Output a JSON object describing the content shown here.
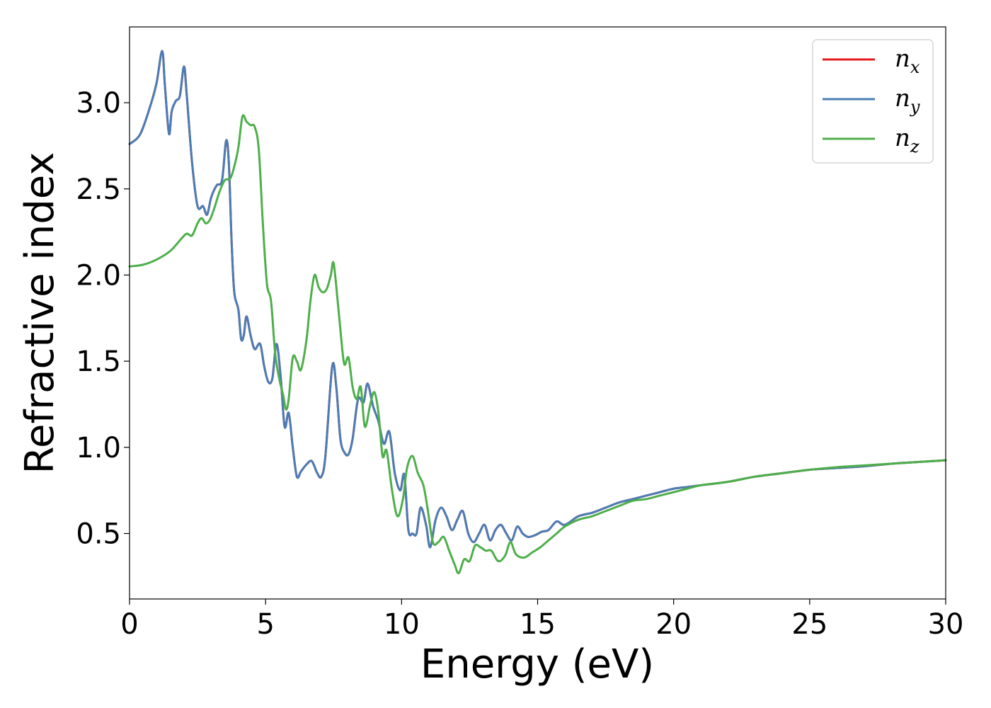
{
  "chart_data": {
    "type": "line",
    "xlabel": "Energy (eV)",
    "ylabel": "Refractive index",
    "xlim": [
      0,
      30
    ],
    "ylim": [
      0.12,
      3.44
    ],
    "xticks": [
      0,
      5,
      10,
      15,
      20,
      25,
      30
    ],
    "xtick_labels": [
      "0",
      "5",
      "10",
      "15",
      "20",
      "25",
      "30"
    ],
    "yticks": [
      0.5,
      1.0,
      1.5,
      2.0,
      2.5,
      3.0
    ],
    "ytick_labels": [
      "0.5",
      "1.0",
      "1.5",
      "2.0",
      "2.5",
      "3.0"
    ],
    "grid": false,
    "legend_position": "top-right",
    "series": [
      {
        "name": "n_x",
        "label_base": "n",
        "label_sub": "x",
        "color": "#e41a1c",
        "x": [
          0,
          0.4,
          0.8,
          1.0,
          1.2,
          1.3,
          1.45,
          1.55,
          1.7,
          1.85,
          2.0,
          2.1,
          2.3,
          2.5,
          2.7,
          2.85,
          3.0,
          3.2,
          3.4,
          3.55,
          3.65,
          3.75,
          3.85,
          4.0,
          4.1,
          4.2,
          4.3,
          4.45,
          4.6,
          4.8,
          4.95,
          5.1,
          5.25,
          5.4,
          5.55,
          5.7,
          5.85,
          6.0,
          6.15,
          6.3,
          6.5,
          6.7,
          6.9,
          7.05,
          7.2,
          7.45,
          7.6,
          7.75,
          7.9,
          8.05,
          8.2,
          8.4,
          8.6,
          8.75,
          8.95,
          9.15,
          9.35,
          9.55,
          9.75,
          9.95,
          10.1,
          10.25,
          10.4,
          10.55,
          10.7,
          10.9,
          11.05,
          11.25,
          11.45,
          11.65,
          11.85,
          12.05,
          12.25,
          12.45,
          12.65,
          12.85,
          13.05,
          13.25,
          13.45,
          13.65,
          13.85,
          14.05,
          14.25,
          14.45,
          14.65,
          14.9,
          15.15,
          15.4,
          15.7,
          16.0,
          16.5,
          17.0,
          17.5,
          18.0,
          18.5,
          19.0,
          19.5,
          20.0,
          20.5,
          21.0,
          22.0,
          23.0,
          24.0,
          25.0,
          26.0,
          27.0,
          28.0,
          29.0,
          30.0
        ],
        "y": [
          2.76,
          2.82,
          3.0,
          3.12,
          3.3,
          3.1,
          2.82,
          2.95,
          3.01,
          3.04,
          3.21,
          3.05,
          2.65,
          2.4,
          2.4,
          2.35,
          2.45,
          2.52,
          2.55,
          2.78,
          2.65,
          2.2,
          1.9,
          1.8,
          1.63,
          1.65,
          1.76,
          1.65,
          1.57,
          1.6,
          1.47,
          1.38,
          1.4,
          1.6,
          1.42,
          1.12,
          1.2,
          1.0,
          0.83,
          0.86,
          0.9,
          0.92,
          0.85,
          0.83,
          0.95,
          1.47,
          1.35,
          1.05,
          0.97,
          0.96,
          1.05,
          1.28,
          1.26,
          1.37,
          1.24,
          1.15,
          1.02,
          1.09,
          0.85,
          0.75,
          0.84,
          0.52,
          0.5,
          0.5,
          0.65,
          0.55,
          0.42,
          0.58,
          0.65,
          0.6,
          0.52,
          0.58,
          0.63,
          0.5,
          0.45,
          0.5,
          0.55,
          0.46,
          0.52,
          0.55,
          0.5,
          0.46,
          0.54,
          0.5,
          0.48,
          0.49,
          0.51,
          0.52,
          0.57,
          0.55,
          0.6,
          0.62,
          0.65,
          0.68,
          0.7,
          0.72,
          0.74,
          0.76,
          0.77,
          0.78,
          0.8,
          0.83,
          0.85,
          0.87,
          0.88,
          0.89,
          0.905,
          0.915,
          0.925
        ]
      },
      {
        "name": "n_y",
        "label_base": "n",
        "label_sub": "y",
        "color": "#4a7db5",
        "x": [
          0,
          0.4,
          0.8,
          1.0,
          1.2,
          1.3,
          1.45,
          1.55,
          1.7,
          1.85,
          2.0,
          2.1,
          2.3,
          2.5,
          2.7,
          2.85,
          3.0,
          3.2,
          3.4,
          3.55,
          3.65,
          3.75,
          3.85,
          4.0,
          4.1,
          4.2,
          4.3,
          4.45,
          4.6,
          4.8,
          4.95,
          5.1,
          5.25,
          5.4,
          5.55,
          5.7,
          5.85,
          6.0,
          6.15,
          6.3,
          6.5,
          6.7,
          6.9,
          7.05,
          7.2,
          7.45,
          7.6,
          7.75,
          7.9,
          8.05,
          8.2,
          8.4,
          8.6,
          8.75,
          8.95,
          9.15,
          9.35,
          9.55,
          9.75,
          9.95,
          10.1,
          10.25,
          10.4,
          10.55,
          10.7,
          10.9,
          11.05,
          11.25,
          11.45,
          11.65,
          11.85,
          12.05,
          12.25,
          12.45,
          12.65,
          12.85,
          13.05,
          13.25,
          13.45,
          13.65,
          13.85,
          14.05,
          14.25,
          14.45,
          14.65,
          14.9,
          15.15,
          15.4,
          15.7,
          16.0,
          16.5,
          17.0,
          17.5,
          18.0,
          18.5,
          19.0,
          19.5,
          20.0,
          20.5,
          21.0,
          22.0,
          23.0,
          24.0,
          25.0,
          26.0,
          27.0,
          28.0,
          29.0,
          30.0
        ],
        "y": [
          2.76,
          2.82,
          3.0,
          3.12,
          3.3,
          3.1,
          2.82,
          2.95,
          3.01,
          3.04,
          3.21,
          3.05,
          2.65,
          2.4,
          2.4,
          2.35,
          2.45,
          2.52,
          2.55,
          2.78,
          2.65,
          2.2,
          1.9,
          1.8,
          1.63,
          1.65,
          1.76,
          1.65,
          1.57,
          1.6,
          1.47,
          1.38,
          1.4,
          1.6,
          1.42,
          1.12,
          1.2,
          1.0,
          0.83,
          0.86,
          0.9,
          0.92,
          0.85,
          0.83,
          0.95,
          1.47,
          1.35,
          1.05,
          0.97,
          0.96,
          1.05,
          1.28,
          1.26,
          1.37,
          1.24,
          1.15,
          1.02,
          1.09,
          0.85,
          0.75,
          0.84,
          0.52,
          0.5,
          0.5,
          0.65,
          0.55,
          0.42,
          0.58,
          0.65,
          0.6,
          0.52,
          0.58,
          0.63,
          0.5,
          0.45,
          0.5,
          0.55,
          0.46,
          0.52,
          0.55,
          0.5,
          0.46,
          0.54,
          0.5,
          0.48,
          0.49,
          0.51,
          0.52,
          0.57,
          0.55,
          0.6,
          0.62,
          0.65,
          0.68,
          0.7,
          0.72,
          0.74,
          0.76,
          0.77,
          0.78,
          0.8,
          0.83,
          0.85,
          0.87,
          0.88,
          0.89,
          0.905,
          0.915,
          0.925
        ]
      },
      {
        "name": "n_z",
        "label_base": "n",
        "label_sub": "z",
        "color": "#4daf4a",
        "x": [
          0,
          0.5,
          1.0,
          1.5,
          1.9,
          2.1,
          2.3,
          2.5,
          2.65,
          2.8,
          2.95,
          3.1,
          3.3,
          3.5,
          3.7,
          3.85,
          4.0,
          4.15,
          4.3,
          4.45,
          4.6,
          4.75,
          4.9,
          5.05,
          5.2,
          5.35,
          5.5,
          5.65,
          5.75,
          5.85,
          6.0,
          6.15,
          6.3,
          6.5,
          6.65,
          6.8,
          6.95,
          7.1,
          7.25,
          7.4,
          7.5,
          7.65,
          7.8,
          7.9,
          8.05,
          8.2,
          8.35,
          8.5,
          8.65,
          8.85,
          9.0,
          9.15,
          9.3,
          9.45,
          9.65,
          9.85,
          10.05,
          10.2,
          10.4,
          10.6,
          10.8,
          10.95,
          11.15,
          11.35,
          11.55,
          11.75,
          11.95,
          12.1,
          12.3,
          12.5,
          12.7,
          12.9,
          13.1,
          13.3,
          13.55,
          13.8,
          14.0,
          14.2,
          14.5,
          14.8,
          15.1,
          15.4,
          15.7,
          16.0,
          16.5,
          17.0,
          17.5,
          18.0,
          18.5,
          19.0,
          19.5,
          20.0,
          20.5,
          21.0,
          22.0,
          23.0,
          24.0,
          25.0,
          26.0,
          27.0,
          28.0,
          29.0,
          30.0
        ],
        "y": [
          2.05,
          2.06,
          2.09,
          2.14,
          2.21,
          2.24,
          2.23,
          2.3,
          2.33,
          2.3,
          2.32,
          2.38,
          2.48,
          2.55,
          2.56,
          2.63,
          2.74,
          2.92,
          2.89,
          2.87,
          2.86,
          2.73,
          2.3,
          1.95,
          1.85,
          1.55,
          1.4,
          1.3,
          1.22,
          1.28,
          1.52,
          1.5,
          1.45,
          1.62,
          1.85,
          2.0,
          1.93,
          1.9,
          1.92,
          2.0,
          2.07,
          1.85,
          1.6,
          1.48,
          1.52,
          1.35,
          1.28,
          1.35,
          1.12,
          1.25,
          1.32,
          1.2,
          0.95,
          0.98,
          0.75,
          0.6,
          0.7,
          0.88,
          0.95,
          0.85,
          0.78,
          0.65,
          0.45,
          0.45,
          0.48,
          0.4,
          0.32,
          0.27,
          0.35,
          0.34,
          0.43,
          0.42,
          0.4,
          0.4,
          0.34,
          0.37,
          0.45,
          0.38,
          0.36,
          0.39,
          0.42,
          0.46,
          0.5,
          0.54,
          0.58,
          0.6,
          0.63,
          0.66,
          0.69,
          0.7,
          0.72,
          0.74,
          0.76,
          0.78,
          0.8,
          0.83,
          0.85,
          0.87,
          0.885,
          0.895,
          0.905,
          0.915,
          0.925
        ]
      }
    ]
  }
}
